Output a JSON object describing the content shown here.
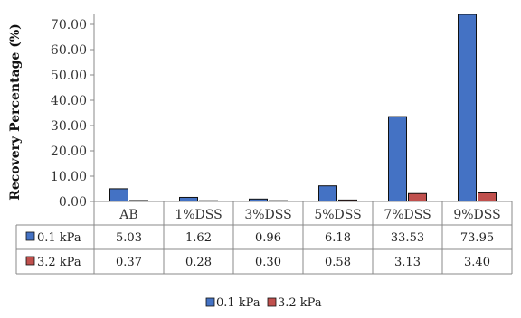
{
  "chart_data": {
    "type": "bar",
    "title": "",
    "xlabel": "",
    "ylabel": "Recovery Percentage (%)",
    "ylim": [
      0,
      70
    ],
    "yticks": [
      "0.00",
      "10.00",
      "20.00",
      "30.00",
      "40.00",
      "50.00",
      "60.00",
      "70.00"
    ],
    "categories": [
      "AB",
      "1%DSS",
      "3%DSS",
      "5%DSS",
      "7%DSS",
      "9%DSS"
    ],
    "series": [
      {
        "name": "0.1 kPa",
        "color": "#4472C4",
        "values": [
          5.03,
          1.62,
          0.96,
          6.18,
          33.53,
          73.95
        ],
        "labels": [
          "5.03",
          "1.62",
          "0.96",
          "6.18",
          "33.53",
          "73.95"
        ]
      },
      {
        "name": "3.2 kPa",
        "color": "#C0504D",
        "values": [
          0.37,
          0.28,
          0.3,
          0.58,
          3.13,
          3.4
        ],
        "labels": [
          "0.37",
          "0.28",
          "0.30",
          "0.58",
          "3.13",
          "3.40"
        ]
      }
    ],
    "grid": false,
    "legend": "bottom-center",
    "data_table": true
  }
}
